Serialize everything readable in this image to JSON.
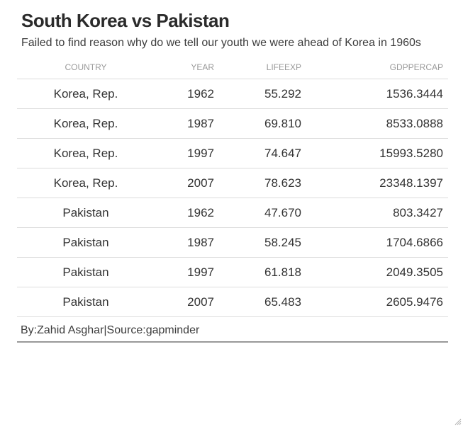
{
  "chart_data": {
    "type": "table",
    "title": "South Korea vs Pakistan",
    "subtitle": "Failed to find reason why do we tell our youth we were ahead of Korea in 1960s",
    "columns": [
      "COUNTRY",
      "YEAR",
      "LIFEEXP",
      "GDPPERCAP"
    ],
    "rows": [
      [
        "Korea, Rep.",
        "1962",
        "55.292",
        "1536.3444"
      ],
      [
        "Korea, Rep.",
        "1987",
        "69.810",
        "8533.0888"
      ],
      [
        "Korea, Rep.",
        "1997",
        "74.647",
        "15993.5280"
      ],
      [
        "Korea, Rep.",
        "2007",
        "78.623",
        "23348.1397"
      ],
      [
        "Pakistan",
        "1962",
        "47.670",
        "803.3427"
      ],
      [
        "Pakistan",
        "1987",
        "58.245",
        "1704.6866"
      ],
      [
        "Pakistan",
        "1997",
        "61.818",
        "2049.3505"
      ],
      [
        "Pakistan",
        "2007",
        "65.483",
        "2605.9476"
      ]
    ],
    "source": "By:Zahid Asghar|Source:gapminder"
  },
  "colors": {
    "title": "#2b2b2b",
    "text": "#333333",
    "header": "#9a9a9a",
    "rule": "#dcdcdc",
    "bottom_rule": "#999999"
  },
  "icons": {
    "resize_grip": "resize-grip-icon"
  }
}
